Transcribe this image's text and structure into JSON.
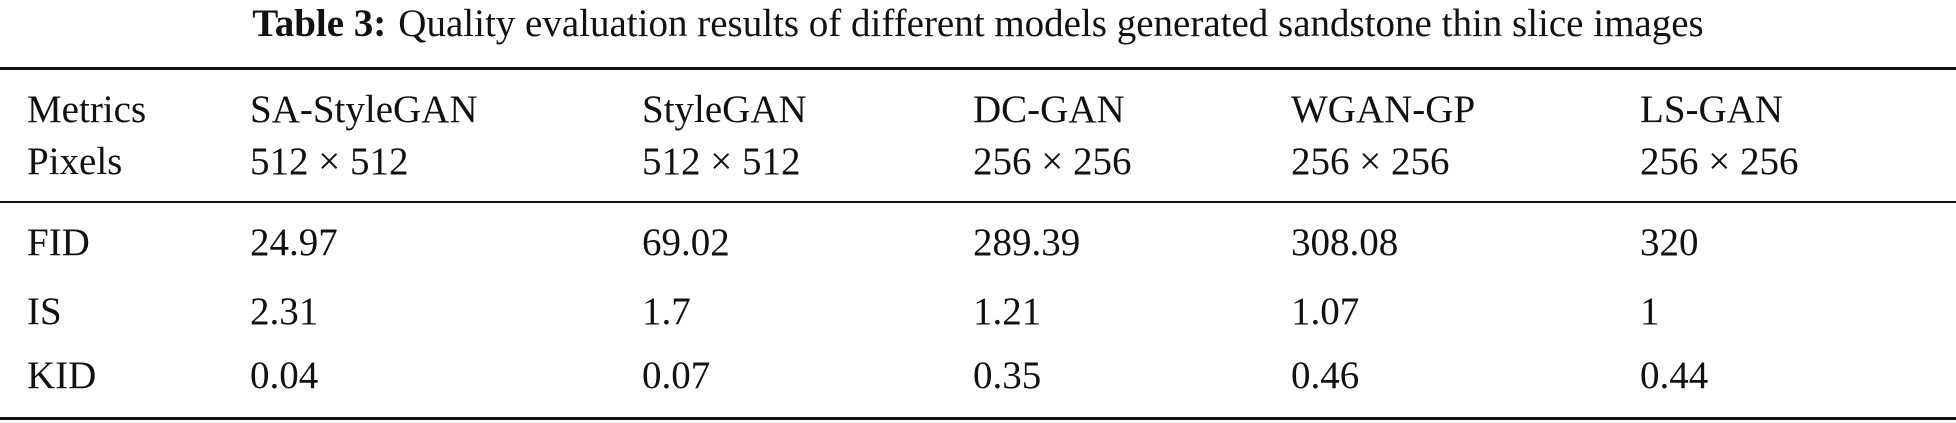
{
  "caption": {
    "label": "Table 3:",
    "text": "Quality evaluation results of different models generated sandstone thin slice images"
  },
  "table": {
    "header": [
      [
        "Metrics",
        "SA-StyleGAN",
        "StyleGAN",
        "DC-GAN",
        "WGAN-GP",
        "LS-GAN"
      ],
      [
        "Pixels",
        "512 × 512",
        "512 × 512",
        "256 × 256",
        "256 × 256",
        "256 × 256"
      ]
    ],
    "rows": [
      [
        "FID",
        "24.97",
        "69.02",
        "289.39",
        "308.08",
        "320"
      ],
      [
        "IS",
        "2.31",
        "1.7",
        "1.21",
        "1.07",
        "1"
      ],
      [
        "KID",
        "0.04",
        "0.07",
        "0.35",
        "0.46",
        "0.44"
      ]
    ]
  }
}
